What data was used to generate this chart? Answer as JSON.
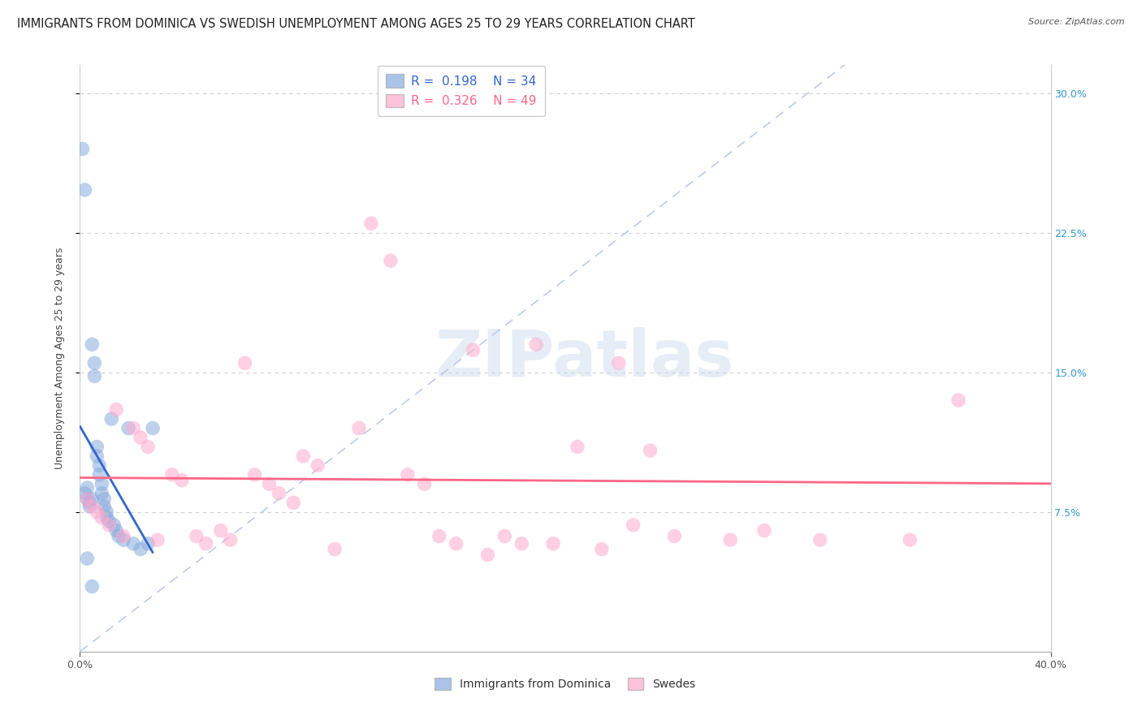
{
  "title": "IMMIGRANTS FROM DOMINICA VS SWEDISH UNEMPLOYMENT AMONG AGES 25 TO 29 YEARS CORRELATION CHART",
  "source": "Source: ZipAtlas.com",
  "ylabel": "Unemployment Among Ages 25 to 29 years",
  "xlim": [
    0.0,
    0.4
  ],
  "ylim": [
    0.0,
    0.315
  ],
  "xticks": [
    0.0,
    0.4
  ],
  "xticklabels": [
    "0.0%",
    "40.0%"
  ],
  "yticks_right": [
    0.075,
    0.15,
    0.225,
    0.3
  ],
  "yticklabels_right": [
    "7.5%",
    "15.0%",
    "22.5%",
    "30.0%"
  ],
  "grid_yticks": [
    0.075,
    0.15,
    0.225,
    0.3
  ],
  "blue_R": 0.198,
  "blue_N": 34,
  "pink_R": 0.326,
  "pink_N": 49,
  "blue_color": "#88AADD",
  "pink_color": "#FFAACC",
  "blue_line_color": "#3366CC",
  "pink_line_color": "#FF6688",
  "diagonal_color": "#BBCCEE",
  "legend_label_blue": "Immigrants from Dominica",
  "legend_label_pink": "Swedes",
  "blue_scatter_x": [
    0.001,
    0.002,
    0.002,
    0.003,
    0.003,
    0.004,
    0.004,
    0.005,
    0.005,
    0.006,
    0.006,
    0.007,
    0.007,
    0.008,
    0.008,
    0.009,
    0.009,
    0.01,
    0.01,
    0.011,
    0.011,
    0.012,
    0.013,
    0.014,
    0.015,
    0.016,
    0.018,
    0.02,
    0.022,
    0.025,
    0.028,
    0.03,
    0.003,
    0.005
  ],
  "blue_scatter_y": [
    0.27,
    0.248,
    0.085,
    0.088,
    0.082,
    0.08,
    0.078,
    0.165,
    0.082,
    0.155,
    0.148,
    0.11,
    0.105,
    0.1,
    0.095,
    0.09,
    0.085,
    0.082,
    0.078,
    0.075,
    0.072,
    0.07,
    0.125,
    0.068,
    0.065,
    0.062,
    0.06,
    0.12,
    0.058,
    0.055,
    0.058,
    0.12,
    0.05,
    0.035
  ],
  "pink_scatter_x": [
    0.003,
    0.005,
    0.007,
    0.009,
    0.012,
    0.015,
    0.018,
    0.022,
    0.025,
    0.028,
    0.032,
    0.038,
    0.042,
    0.048,
    0.052,
    0.058,
    0.062,
    0.068,
    0.072,
    0.078,
    0.082,
    0.088,
    0.092,
    0.098,
    0.105,
    0.115,
    0.12,
    0.128,
    0.135,
    0.142,
    0.148,
    0.155,
    0.162,
    0.168,
    0.175,
    0.182,
    0.188,
    0.195,
    0.205,
    0.215,
    0.222,
    0.228,
    0.235,
    0.245,
    0.268,
    0.282,
    0.305,
    0.342,
    0.362
  ],
  "pink_scatter_y": [
    0.082,
    0.078,
    0.075,
    0.072,
    0.068,
    0.13,
    0.062,
    0.12,
    0.115,
    0.11,
    0.06,
    0.095,
    0.092,
    0.062,
    0.058,
    0.065,
    0.06,
    0.155,
    0.095,
    0.09,
    0.085,
    0.08,
    0.105,
    0.1,
    0.055,
    0.12,
    0.23,
    0.21,
    0.095,
    0.09,
    0.062,
    0.058,
    0.162,
    0.052,
    0.062,
    0.058,
    0.165,
    0.058,
    0.11,
    0.055,
    0.155,
    0.068,
    0.108,
    0.062,
    0.06,
    0.065,
    0.06,
    0.06,
    0.135
  ],
  "watermark_text": "ZIPatlas",
  "title_fontsize": 10.5,
  "axis_label_fontsize": 9,
  "tick_fontsize": 9,
  "legend_fontsize": 10,
  "source_fontsize": 8
}
